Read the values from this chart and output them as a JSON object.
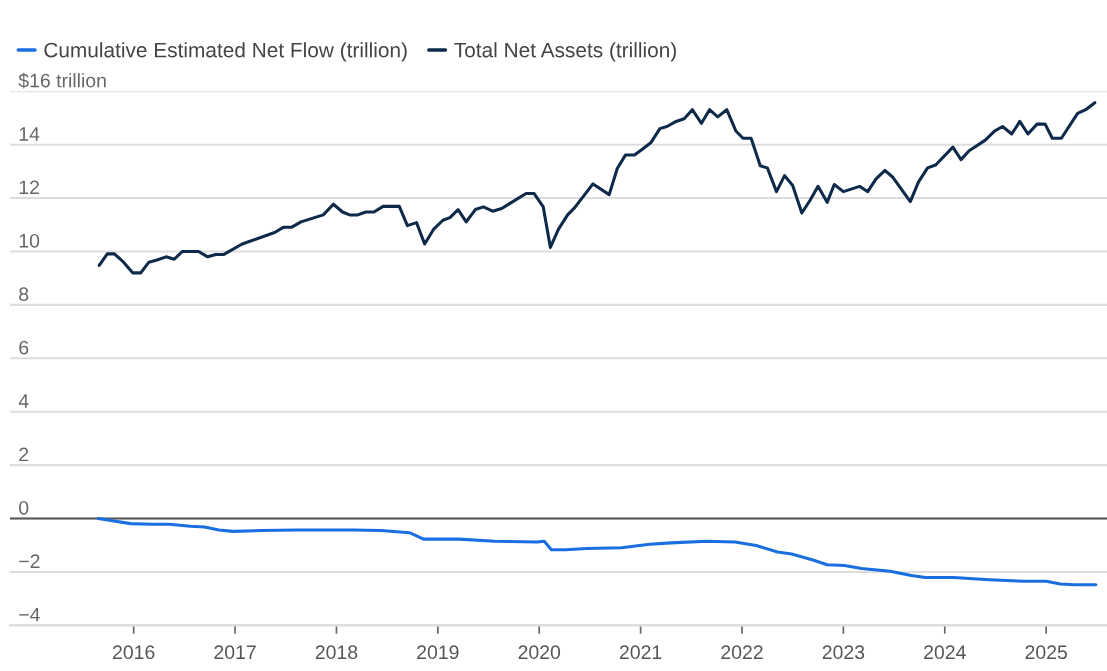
{
  "chart_data": {
    "type": "line",
    "xlim": [
      2014.78,
      2025.6
    ],
    "xticks": [
      2016,
      2017,
      2018,
      2019,
      2020,
      2021,
      2022,
      2023,
      2024,
      2025
    ],
    "ylim": [
      -4,
      16
    ],
    "yticks": [
      {
        "value": -4,
        "label": "−4"
      },
      {
        "value": -2,
        "label": "−2"
      },
      0,
      2,
      4,
      6,
      8,
      10,
      12,
      14,
      {
        "value": 16,
        "label": "$16 trillion"
      }
    ],
    "grid": "y",
    "legend": "top left",
    "line_style": "solid",
    "marker": "none",
    "ref_lines": [
      {
        "axis": "y",
        "value": 0,
        "color": "#555555"
      }
    ],
    "series": [
      {
        "name": "Cumulative Estimated Net Flow (trillion)",
        "color": "#1a6fe0",
        "x": [
          2015.65,
          2015.79,
          2015.97,
          2016.18,
          2016.35,
          2016.56,
          2016.7,
          2016.84,
          2016.98,
          2017.26,
          2017.61,
          2018.17,
          2018.44,
          2018.72,
          2018.86,
          2019.21,
          2019.56,
          2019.98,
          2020.05,
          2020.12,
          2020.26,
          2020.47,
          2020.81,
          2021.09,
          2021.3,
          2021.65,
          2021.93,
          2022.14,
          2022.35,
          2022.49,
          2022.7,
          2022.84,
          2023.01,
          2023.18,
          2023.46,
          2023.67,
          2023.81,
          2024.09,
          2024.44,
          2024.79,
          2025.0,
          2025.14,
          2025.28,
          2025.49
        ],
        "values": [
          0,
          -0.08,
          -0.19,
          -0.21,
          -0.21,
          -0.29,
          -0.32,
          -0.43,
          -0.48,
          -0.45,
          -0.43,
          -0.43,
          -0.45,
          -0.53,
          -0.77,
          -0.77,
          -0.85,
          -0.88,
          -0.85,
          -1.17,
          -1.17,
          -1.12,
          -1.09,
          -0.96,
          -0.91,
          -0.85,
          -0.88,
          -1.01,
          -1.25,
          -1.33,
          -1.55,
          -1.73,
          -1.76,
          -1.87,
          -1.97,
          -2.13,
          -2.21,
          -2.21,
          -2.29,
          -2.35,
          -2.35,
          -2.45,
          -2.48,
          -2.48
        ]
      },
      {
        "name": "Total Net Assets (trillion)",
        "color": "#0d2a4a",
        "x": [
          2015.66,
          2015.74,
          2015.81,
          2015.89,
          2015.99,
          2016.07,
          2016.15,
          2016.23,
          2016.32,
          2016.4,
          2016.48,
          2016.64,
          2016.73,
          2016.81,
          2016.89,
          2017.07,
          2017.39,
          2017.48,
          2017.56,
          2017.65,
          2017.87,
          2017.97,
          2018.06,
          2018.13,
          2018.21,
          2018.29,
          2018.37,
          2018.46,
          2018.62,
          2018.7,
          2018.79,
          2018.87,
          2018.96,
          2019.05,
          2019.12,
          2019.2,
          2019.28,
          2019.37,
          2019.45,
          2019.54,
          2019.63,
          2019.87,
          2019.95,
          2020.04,
          2020.11,
          2020.19,
          2020.28,
          2020.35,
          2020.53,
          2020.69,
          2020.77,
          2020.85,
          2020.94,
          2021.02,
          2021.1,
          2021.19,
          2021.26,
          2021.35,
          2021.43,
          2021.51,
          2021.6,
          2021.68,
          2021.76,
          2021.85,
          2021.94,
          2022.01,
          2022.09,
          2022.18,
          2022.25,
          2022.34,
          2022.42,
          2022.5,
          2022.59,
          2022.67,
          2022.75,
          2022.84,
          2022.91,
          2023.0,
          2023.16,
          2023.24,
          2023.32,
          2023.41,
          2023.49,
          2023.66,
          2023.74,
          2023.83,
          2023.91,
          2024.08,
          2024.16,
          2024.24,
          2024.4,
          2024.49,
          2024.57,
          2024.66,
          2024.74,
          2024.82,
          2024.91,
          2024.99,
          2025.06,
          2025.15,
          2025.31,
          2025.39,
          2025.48
        ],
        "values": [
          9.48,
          9.91,
          9.91,
          9.64,
          9.2,
          9.2,
          9.6,
          9.68,
          9.8,
          9.71,
          10.0,
          10.0,
          9.8,
          9.89,
          9.89,
          10.28,
          10.71,
          10.91,
          10.91,
          11.11,
          11.37,
          11.77,
          11.48,
          11.37,
          11.37,
          11.48,
          11.48,
          11.69,
          11.69,
          10.97,
          11.08,
          10.28,
          10.84,
          11.17,
          11.27,
          11.57,
          11.11,
          11.57,
          11.67,
          11.51,
          11.61,
          12.17,
          12.17,
          11.67,
          10.15,
          10.84,
          11.37,
          11.64,
          12.53,
          12.13,
          13.11,
          13.61,
          13.61,
          13.84,
          14.07,
          14.6,
          14.68,
          14.87,
          14.97,
          15.31,
          14.8,
          15.31,
          15.04,
          15.31,
          14.51,
          14.24,
          14.24,
          13.21,
          13.13,
          12.24,
          12.84,
          12.47,
          11.44,
          11.91,
          12.44,
          11.84,
          12.51,
          12.24,
          12.44,
          12.24,
          12.71,
          13.04,
          12.77,
          11.87,
          12.6,
          13.13,
          13.24,
          13.91,
          13.44,
          13.77,
          14.17,
          14.51,
          14.68,
          14.4,
          14.87,
          14.4,
          14.77,
          14.77,
          14.24,
          14.24,
          15.17,
          15.31,
          15.57
        ]
      }
    ]
  }
}
